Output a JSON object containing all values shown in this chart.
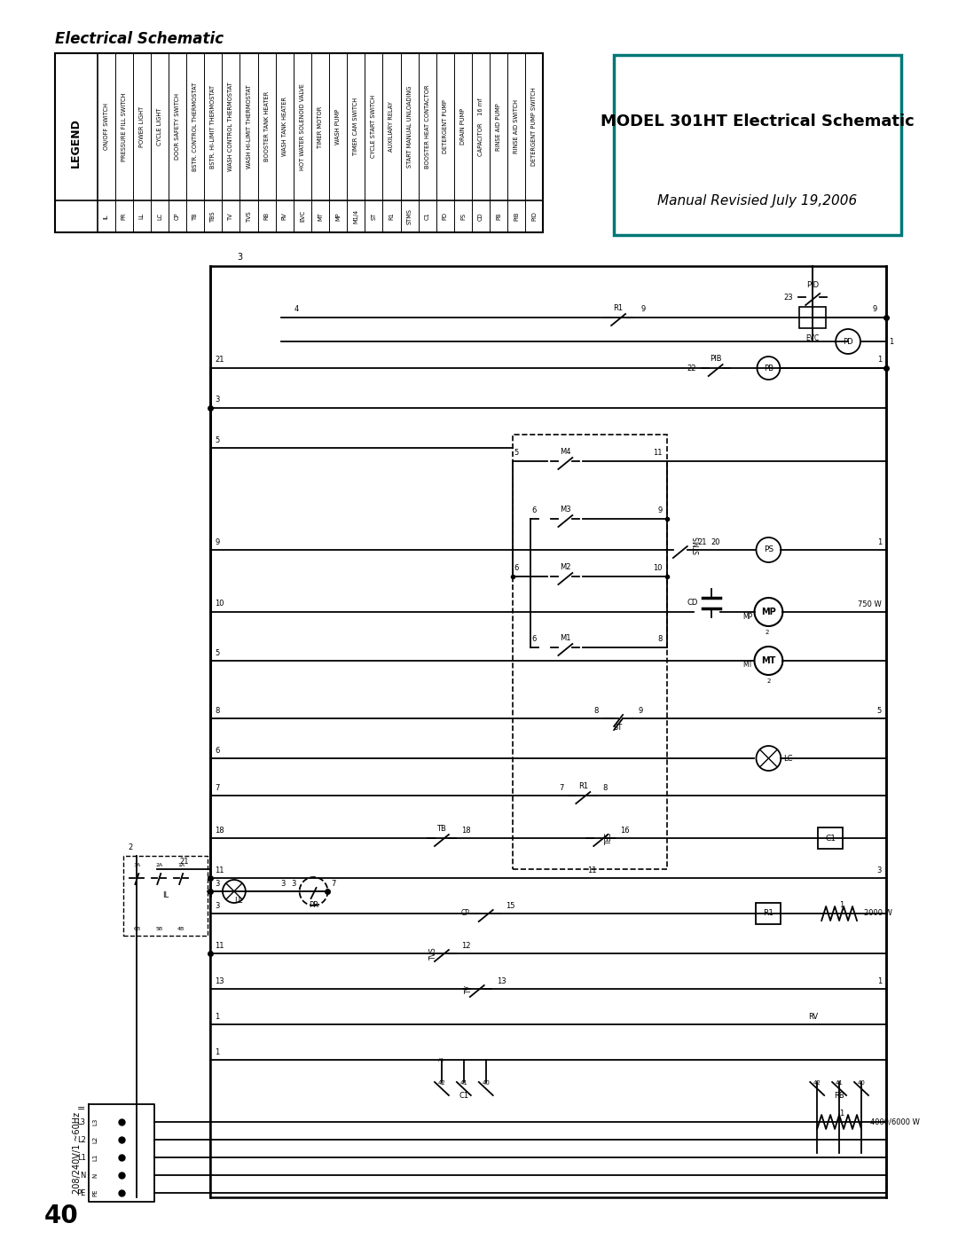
{
  "title": "Electrical Schematic",
  "page_number": "40",
  "model_box_line1": "MODEL 301HT Electrical Schematic",
  "model_box_line2": "Manual Revisied July 19,2006",
  "bg_color": "#ffffff",
  "legend_items": [
    [
      "IL",
      "ON/OFF SWITCH"
    ],
    [
      "PR",
      "PRESSURE FILL SWITCH"
    ],
    [
      "LL",
      "POWER LIGHT"
    ],
    [
      "LC",
      "CYCLE LIGHT"
    ],
    [
      "CP",
      "DOOR SAFETY SWITCH"
    ],
    [
      "TB",
      "BSTR. CONTROL THERMOSTAT"
    ],
    [
      "TBS",
      "BSTR. HI-LIMIT THERMOSTAT"
    ],
    [
      "TV",
      "WASH CONTROL THERMOSTAT"
    ],
    [
      "TVS",
      "WASH HI-LIMIT THERMOSTAT"
    ],
    [
      "RB",
      "BOOSTER TANK HEATER"
    ],
    [
      "RV",
      "WASH TANK HEATER"
    ],
    [
      "EVC",
      "HOT WATER SOLENOID VALVE"
    ],
    [
      "MT",
      "TIMER MOTOR"
    ],
    [
      "MP",
      "WASH PUMP"
    ],
    [
      "M1/4",
      "TIMER CAM SWITCH"
    ],
    [
      "ST",
      "CYCLE START SWITCH"
    ],
    [
      "R1",
      "AUXILIARY RELAY"
    ],
    [
      "STMS",
      "START MANUAL UNLOADING"
    ],
    [
      "C1",
      "BOOSTER HEAT CONTACTOR"
    ],
    [
      "PD",
      "DETERGENT PUMP"
    ],
    [
      "PS",
      "DRAIN PUMP"
    ],
    [
      "CD",
      "CAPACITOR    16 mf"
    ],
    [
      "PB",
      "RINSE AID PUMP"
    ],
    [
      "PIB",
      "RINSE AID SWITCH"
    ],
    [
      "PID",
      "DETERGENT PUMP SWITCH"
    ]
  ],
  "power_label": "208/240V/1 ~60Hz",
  "power_wires": [
    "L3",
    "L2",
    "L1",
    "N",
    "PE"
  ],
  "watt_labels": [
    "750 W",
    "2000 W",
    "4000/6000 W"
  ]
}
